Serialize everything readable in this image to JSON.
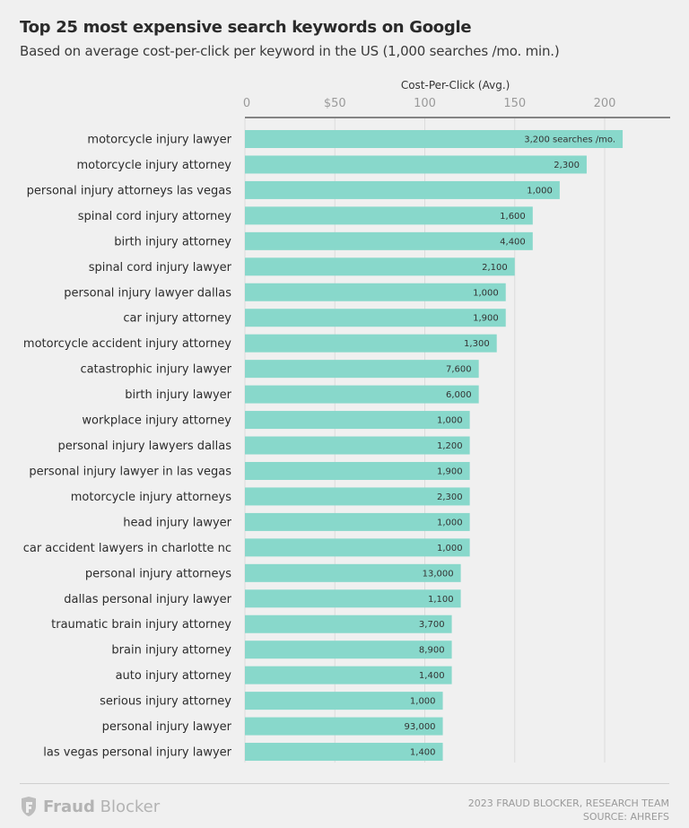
{
  "chart_data": {
    "type": "bar",
    "orientation": "horizontal",
    "title": "Top 25 most expensive search keywords on Google",
    "subtitle": "Based on average cost-per-click per keyword in the US (1,000 searches /mo. min.)",
    "xlabel": "Cost-Per-Click (Avg.)",
    "xlim": [
      0,
      235
    ],
    "ticks": [
      0,
      50,
      100,
      150,
      200
    ],
    "tick_labels": [
      "0",
      "$50",
      "100",
      "150",
      "200"
    ],
    "grid": true,
    "bar_color": "#88d8cb",
    "categories": [
      "motorcycle injury lawyer",
      "motorcycle injury attorney",
      "personal injury attorneys las vegas",
      "spinal cord injury attorney",
      "birth injury attorney",
      "spinal cord injury lawyer",
      "personal injury lawyer dallas",
      "car injury attorney",
      "motorcycle accident injury attorney",
      "catastrophic injury lawyer",
      "birth injury lawyer",
      "workplace injury attorney",
      "personal injury lawyers dallas",
      "personal injury lawyer in las vegas",
      "motorcycle injury attorneys",
      "head injury lawyer",
      "car accident lawyers in charlotte nc",
      "personal injury attorneys",
      "dallas personal injury lawyer",
      "traumatic brain injury attorney",
      "brain injury attorney",
      "auto injury attorney",
      "serious injury attorney",
      "personal injury lawyer",
      "las vegas personal injury lawyer"
    ],
    "values": [
      210,
      190,
      175,
      160,
      160,
      150,
      145,
      145,
      140,
      130,
      130,
      125,
      125,
      125,
      125,
      125,
      125,
      120,
      120,
      115,
      115,
      115,
      110,
      110,
      110
    ],
    "data_labels": [
      "3,200 searches /mo.",
      "2,300",
      "1,000",
      "1,600",
      "4,400",
      "2,100",
      "1,000",
      "1,900",
      "1,300",
      "7,600",
      "6,000",
      "1,000",
      "1,200",
      "1,900",
      "2,300",
      "1,000",
      "1,000",
      "13,000",
      "1,100",
      "3,700",
      "8,900",
      "1,400",
      "1,000",
      "93,000",
      "1,400"
    ]
  },
  "footer": {
    "logo_bold": "Fraud",
    "logo_light": "Blocker",
    "credit_line1": "2023 FRAUD BLOCKER, RESEARCH TEAM",
    "credit_line2": "SOURCE: AHREFS"
  }
}
